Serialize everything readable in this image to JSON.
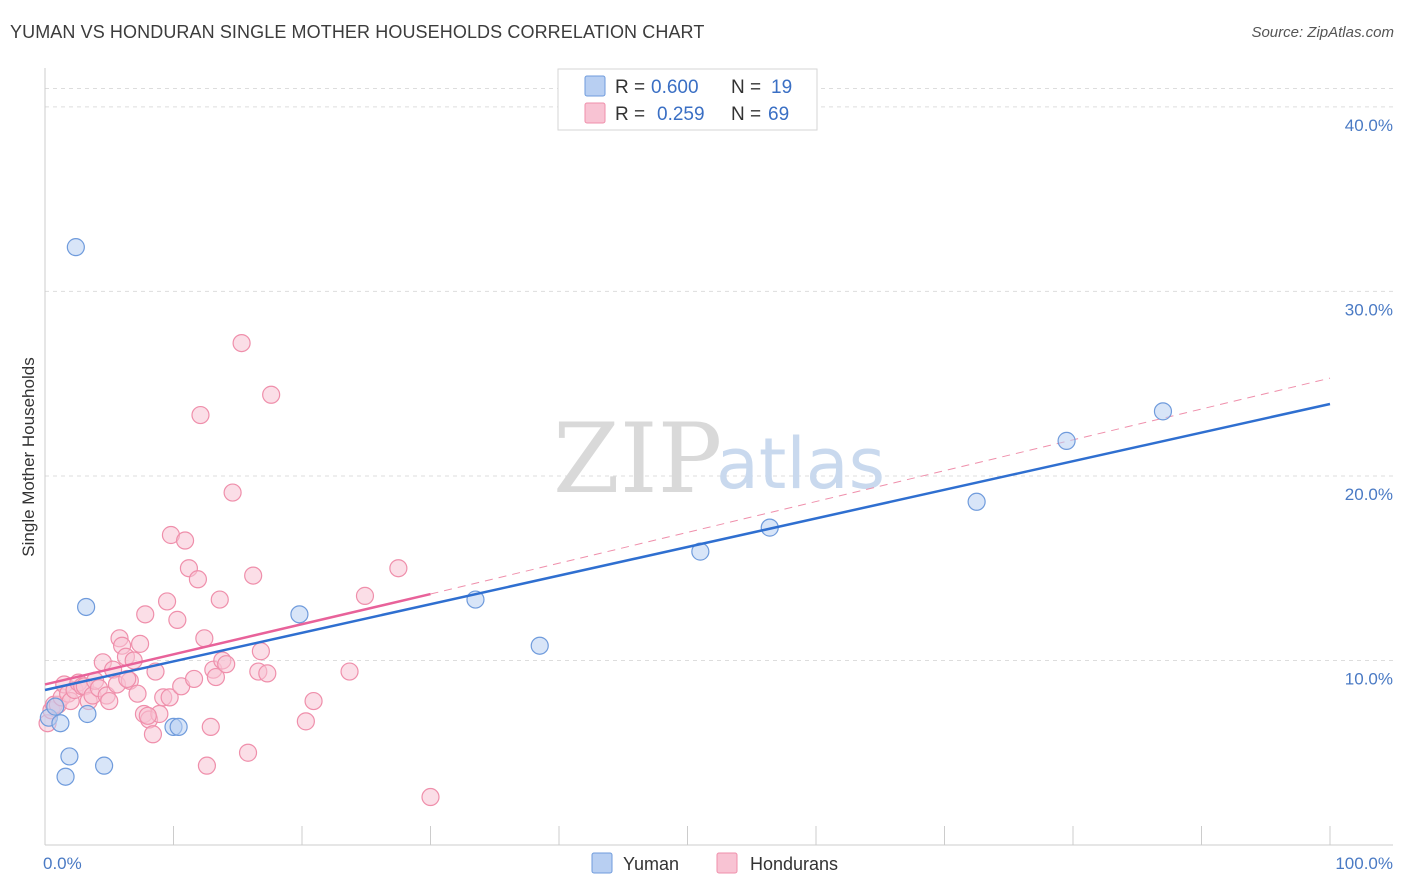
{
  "header": {
    "title": "YUMAN VS HONDURAN SINGLE MOTHER HOUSEHOLDS CORRELATION CHART",
    "source": "Source: ZipAtlas.com"
  },
  "watermark": {
    "zip": "ZIP",
    "atlas": "atlas"
  },
  "colors": {
    "yuman_fill": "#b8cff2",
    "yuman_stroke": "#6f9bdc",
    "yuman_line": "#2f6fd0",
    "hond_fill": "#f8c3d3",
    "hond_stroke": "#ef8fab",
    "hond_line": "#e8629a",
    "grid": "#dddddd",
    "axis": "#cccccc"
  },
  "legend": {
    "r_label": "R =",
    "n_label": "N =",
    "rows": [
      {
        "r": "0.600",
        "n": "19"
      },
      {
        "r": "0.259",
        "n": "69"
      }
    ]
  },
  "chart_data": {
    "type": "scatter",
    "title": "YUMAN VS HONDURAN SINGLE MOTHER HOUSEHOLDS CORRELATION CHART",
    "xlabel": "",
    "ylabel": "Single Mother Households",
    "xlim": [
      0,
      100
    ],
    "ylim": [
      0,
      42
    ],
    "y_ticks": [
      {
        "value": 10,
        "label": "10.0%"
      },
      {
        "value": 20,
        "label": "20.0%"
      },
      {
        "value": 30,
        "label": "30.0%"
      },
      {
        "value": 40,
        "label": "40.0%"
      }
    ],
    "x_tick_labels": {
      "min": "0.0%",
      "max": "100.0%"
    },
    "x_minor_ticks": [
      10,
      20,
      30,
      40,
      50,
      60,
      70,
      80,
      90
    ],
    "series": [
      {
        "name": "Yuman",
        "r": 0.6,
        "n": 19,
        "trend": {
          "x0": 0,
          "y0": 8.4,
          "x1": 100,
          "y1": 23.9
        },
        "points": [
          [
            0.3,
            6.9
          ],
          [
            0.8,
            7.5
          ],
          [
            1.2,
            6.6
          ],
          [
            1.6,
            3.7
          ],
          [
            1.9,
            4.8
          ],
          [
            2.4,
            32.4
          ],
          [
            3.2,
            12.9
          ],
          [
            3.3,
            7.1
          ],
          [
            4.6,
            4.3
          ],
          [
            10.0,
            6.4
          ],
          [
            10.4,
            6.4
          ],
          [
            19.8,
            12.5
          ],
          [
            33.5,
            13.3
          ],
          [
            38.5,
            10.8
          ],
          [
            51.0,
            15.9
          ],
          [
            56.4,
            17.2
          ],
          [
            72.5,
            18.6
          ],
          [
            79.5,
            21.9
          ],
          [
            87.0,
            23.5
          ]
        ]
      },
      {
        "name": "Hondurans",
        "r": 0.259,
        "n": 69,
        "trend": {
          "x0": 0,
          "y0": 8.7,
          "x1": 30,
          "y1": 13.6
        },
        "trend_ext": {
          "x0": 30,
          "y0": 13.6,
          "x1": 100,
          "y1": 25.3
        },
        "points": [
          [
            0.2,
            6.6
          ],
          [
            0.5,
            7.3
          ],
          [
            0.7,
            7.6
          ],
          [
            1.0,
            7.6
          ],
          [
            1.3,
            8.0
          ],
          [
            1.5,
            8.7
          ],
          [
            1.8,
            8.2
          ],
          [
            2.0,
            7.8
          ],
          [
            2.3,
            8.4
          ],
          [
            2.6,
            8.8
          ],
          [
            2.9,
            8.6
          ],
          [
            3.1,
            8.6
          ],
          [
            3.4,
            7.8
          ],
          [
            3.7,
            8.1
          ],
          [
            3.9,
            8.9
          ],
          [
            4.2,
            8.5
          ],
          [
            4.5,
            9.9
          ],
          [
            4.8,
            8.1
          ],
          [
            5.0,
            7.8
          ],
          [
            5.3,
            9.5
          ],
          [
            5.6,
            8.7
          ],
          [
            5.8,
            11.2
          ],
          [
            6.0,
            10.8
          ],
          [
            6.3,
            10.2
          ],
          [
            6.6,
            8.9
          ],
          [
            6.9,
            10.0
          ],
          [
            7.2,
            8.2
          ],
          [
            7.4,
            10.9
          ],
          [
            7.7,
            7.1
          ],
          [
            7.8,
            12.5
          ],
          [
            8.1,
            6.8
          ],
          [
            8.4,
            6.0
          ],
          [
            8.6,
            9.4
          ],
          [
            8.9,
            7.1
          ],
          [
            9.2,
            8.0
          ],
          [
            9.5,
            13.2
          ],
          [
            9.7,
            8.0
          ],
          [
            9.8,
            16.8
          ],
          [
            10.3,
            12.2
          ],
          [
            10.6,
            8.6
          ],
          [
            10.9,
            16.5
          ],
          [
            11.2,
            15.0
          ],
          [
            11.6,
            9.0
          ],
          [
            11.9,
            14.4
          ],
          [
            12.1,
            23.3
          ],
          [
            12.4,
            11.2
          ],
          [
            12.6,
            4.3
          ],
          [
            12.9,
            6.4
          ],
          [
            13.1,
            9.5
          ],
          [
            13.3,
            9.1
          ],
          [
            13.6,
            13.3
          ],
          [
            13.8,
            10.0
          ],
          [
            14.1,
            9.8
          ],
          [
            14.6,
            19.1
          ],
          [
            15.3,
            27.2
          ],
          [
            15.8,
            5.0
          ],
          [
            16.2,
            14.6
          ],
          [
            16.6,
            9.4
          ],
          [
            16.8,
            10.5
          ],
          [
            17.3,
            9.3
          ],
          [
            17.6,
            24.4
          ],
          [
            20.3,
            6.7
          ],
          [
            20.9,
            7.8
          ],
          [
            23.7,
            9.4
          ],
          [
            24.9,
            13.5
          ],
          [
            27.5,
            15.0
          ],
          [
            30.0,
            2.6
          ],
          [
            8.0,
            7.0
          ],
          [
            6.4,
            9.0
          ]
        ]
      }
    ],
    "legend_position": "top-center"
  }
}
